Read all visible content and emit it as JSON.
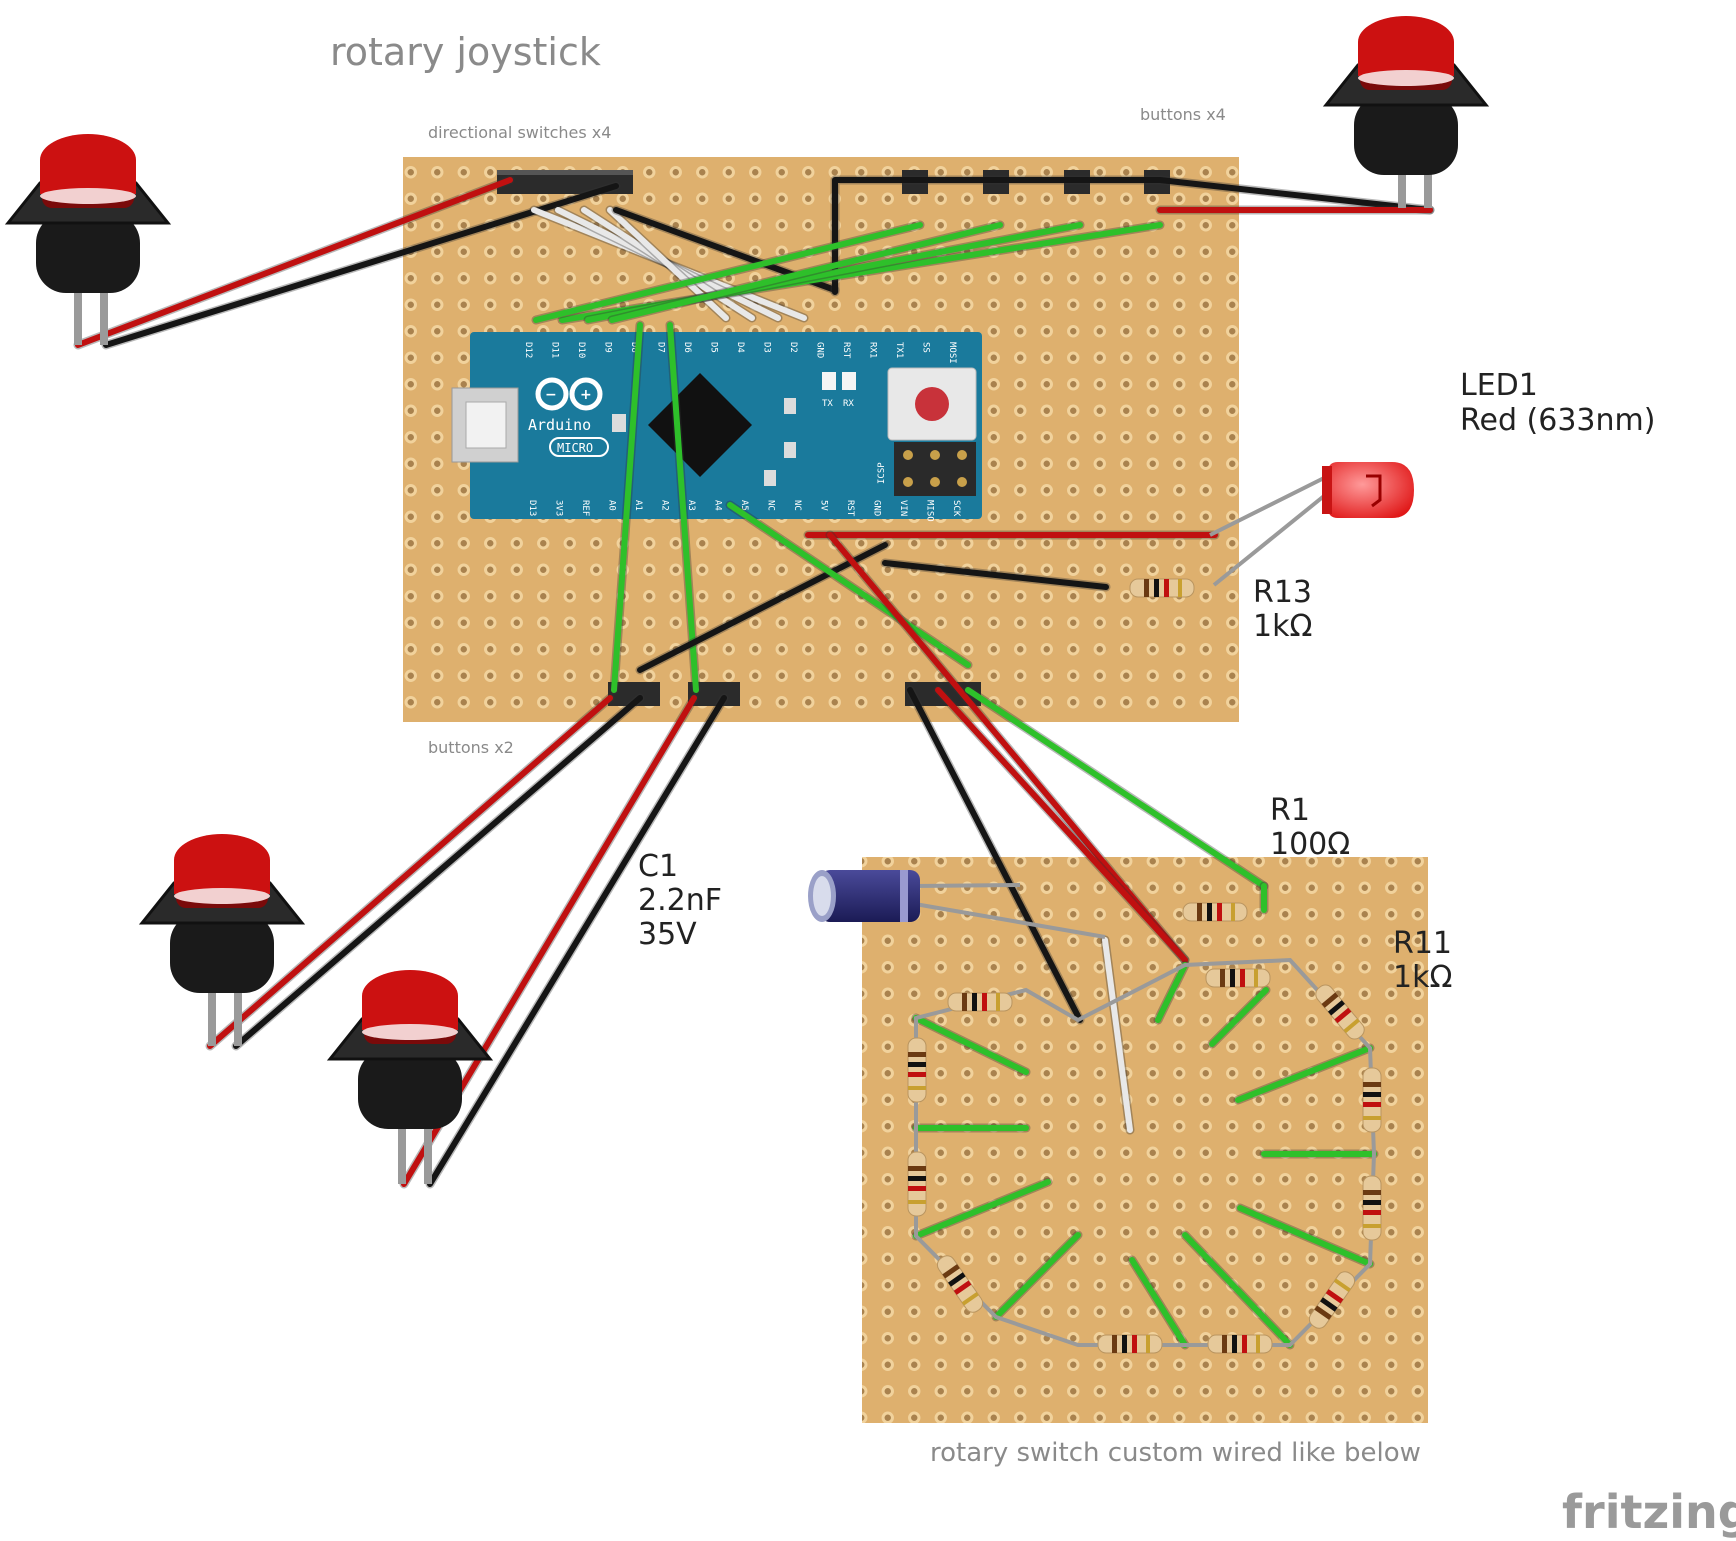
{
  "title": "rotary joystick",
  "labels": {
    "directional_switches": "directional switches x4",
    "buttons_top": "buttons x4",
    "buttons_bottom": "buttons x2",
    "rotary_note": "rotary switch custom wired like below",
    "branding": "fritzing"
  },
  "components": {
    "led": {
      "name": "LED1",
      "value": "Red (633nm)"
    },
    "r13": {
      "name": "R13",
      "value": "1kΩ"
    },
    "r1": {
      "name": "R1",
      "value": "100Ω"
    },
    "r11": {
      "name": "R11",
      "value": "1kΩ"
    },
    "c1": {
      "name": "C1",
      "value": "2.2nF",
      "voltage": "35V"
    }
  },
  "arduino": {
    "brand": "Arduino",
    "model": "MICRO",
    "top_pins": [
      "D12",
      "D11",
      "D10",
      "D9",
      "D8",
      "D7",
      "D6",
      "D5",
      "D4",
      "D3",
      "D2",
      "GND",
      "RST",
      "RX1",
      "TX1",
      "SS",
      "MOSI"
    ],
    "bottom_pins": [
      "D13",
      "3V3",
      "REF",
      "A0",
      "A1",
      "A2",
      "A3",
      "A4",
      "A5",
      "NC",
      "NC",
      "5V",
      "RST",
      "GND",
      "VIN",
      "MISO",
      "SCK"
    ],
    "leds": [
      "TX",
      "RX"
    ],
    "icsp": "ICSP"
  },
  "colors": {
    "board": "#deb06e",
    "hole": "#a9824e",
    "arduino": "#1a7a9c",
    "wire_red": "#c01010",
    "wire_black": "#151515",
    "wire_green": "#2ec02a",
    "wire_white": "#e8e8e8",
    "button_cap": "#cc1111"
  }
}
